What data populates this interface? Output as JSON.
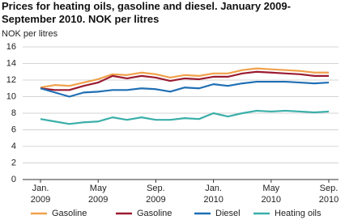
{
  "chart_data": {
    "type": "line",
    "title": "Prices for heating oils, gasoline and diesel. January 2009-September 2010. NOK per litres",
    "y_label": "NOK per litres",
    "categories": [
      "Jan.\n2009",
      null,
      null,
      null,
      "May\n2009",
      null,
      null,
      null,
      "Sep.\n2009",
      null,
      null,
      null,
      "Jan.\n2010",
      null,
      null,
      null,
      "May\n2010",
      null,
      null,
      null,
      "Sep.\n2010"
    ],
    "series": [
      {
        "name": "Gasoline",
        "color": "#f0a04b",
        "values": [
          11.1,
          11.4,
          11.3,
          11.7,
          12.1,
          12.7,
          12.6,
          12.9,
          12.7,
          12.3,
          12.6,
          12.5,
          12.8,
          12.8,
          13.2,
          13.4,
          13.3,
          13.2,
          13.1,
          12.9,
          12.9
        ]
      },
      {
        "name": "Gasoline",
        "color": "#9b1b30",
        "values": [
          11.0,
          10.8,
          10.8,
          11.3,
          11.7,
          12.5,
          12.2,
          12.5,
          12.3,
          11.9,
          12.2,
          12.1,
          12.4,
          12.4,
          12.8,
          13.0,
          12.9,
          12.8,
          12.7,
          12.5,
          12.5
        ]
      },
      {
        "name": "Diesel",
        "color": "#1f6fb4",
        "values": [
          11.0,
          10.5,
          10.0,
          10.5,
          10.6,
          10.8,
          10.8,
          11.0,
          10.9,
          10.6,
          11.1,
          11.0,
          11.5,
          11.3,
          11.6,
          11.8,
          11.8,
          11.8,
          11.7,
          11.6,
          11.7
        ]
      },
      {
        "name": "Heating oils",
        "color": "#3aafa9",
        "values": [
          7.3,
          7.0,
          6.7,
          6.9,
          7.0,
          7.5,
          7.2,
          7.5,
          7.2,
          7.2,
          7.4,
          7.3,
          8.0,
          7.6,
          8.0,
          8.3,
          8.2,
          8.3,
          8.2,
          8.1,
          8.2
        ]
      }
    ],
    "ylim": [
      0,
      16
    ],
    "yticks": [
      0,
      2,
      4,
      6,
      8,
      10,
      12,
      14,
      16
    ],
    "grid": true
  }
}
